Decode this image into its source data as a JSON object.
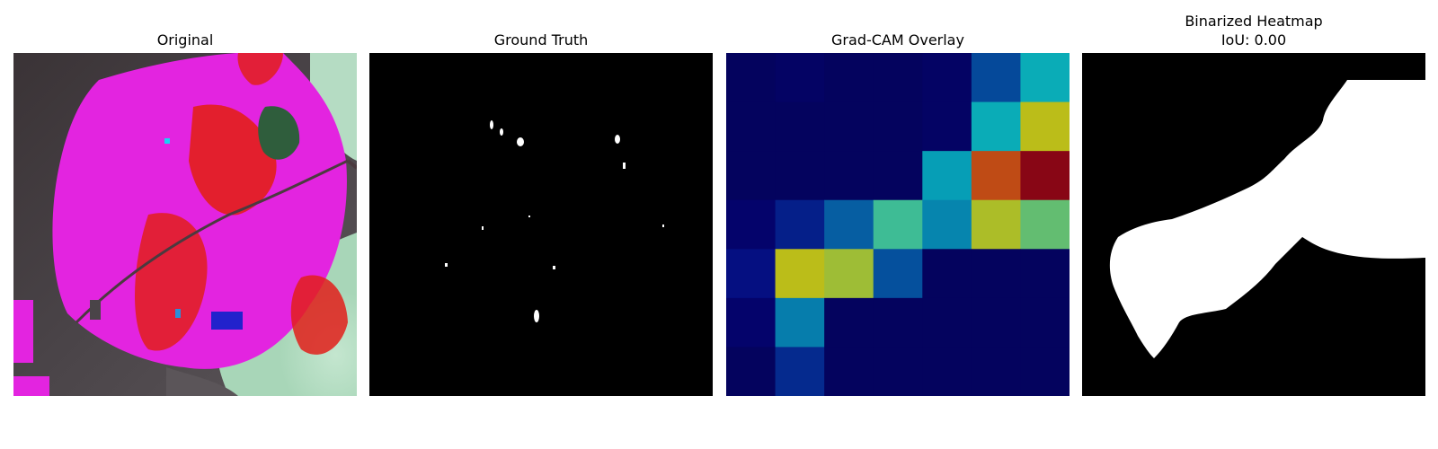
{
  "panels": [
    {
      "title": "Original"
    },
    {
      "title": "Ground Truth"
    },
    {
      "title": "Grad-CAM Overlay"
    },
    {
      "title": "Binarized Heatmap",
      "subtitle": "IoU: 0.00"
    }
  ],
  "gradcam_grid": [
    [
      0.08,
      0.09,
      0.08,
      0.08,
      0.09,
      0.25,
      0.38
    ],
    [
      0.08,
      0.08,
      0.08,
      0.08,
      0.09,
      0.38,
      0.62
    ],
    [
      0.08,
      0.08,
      0.08,
      0.08,
      0.36,
      0.78,
      0.95
    ],
    [
      0.1,
      0.18,
      0.28,
      0.45,
      0.33,
      0.6,
      0.5
    ],
    [
      0.15,
      0.62,
      0.58,
      0.26,
      0.08,
      0.08,
      0.08
    ],
    [
      0.1,
      0.32,
      0.08,
      0.08,
      0.08,
      0.08,
      0.08
    ],
    [
      0.08,
      0.2,
      0.08,
      0.08,
      0.08,
      0.08,
      0.08
    ]
  ]
}
